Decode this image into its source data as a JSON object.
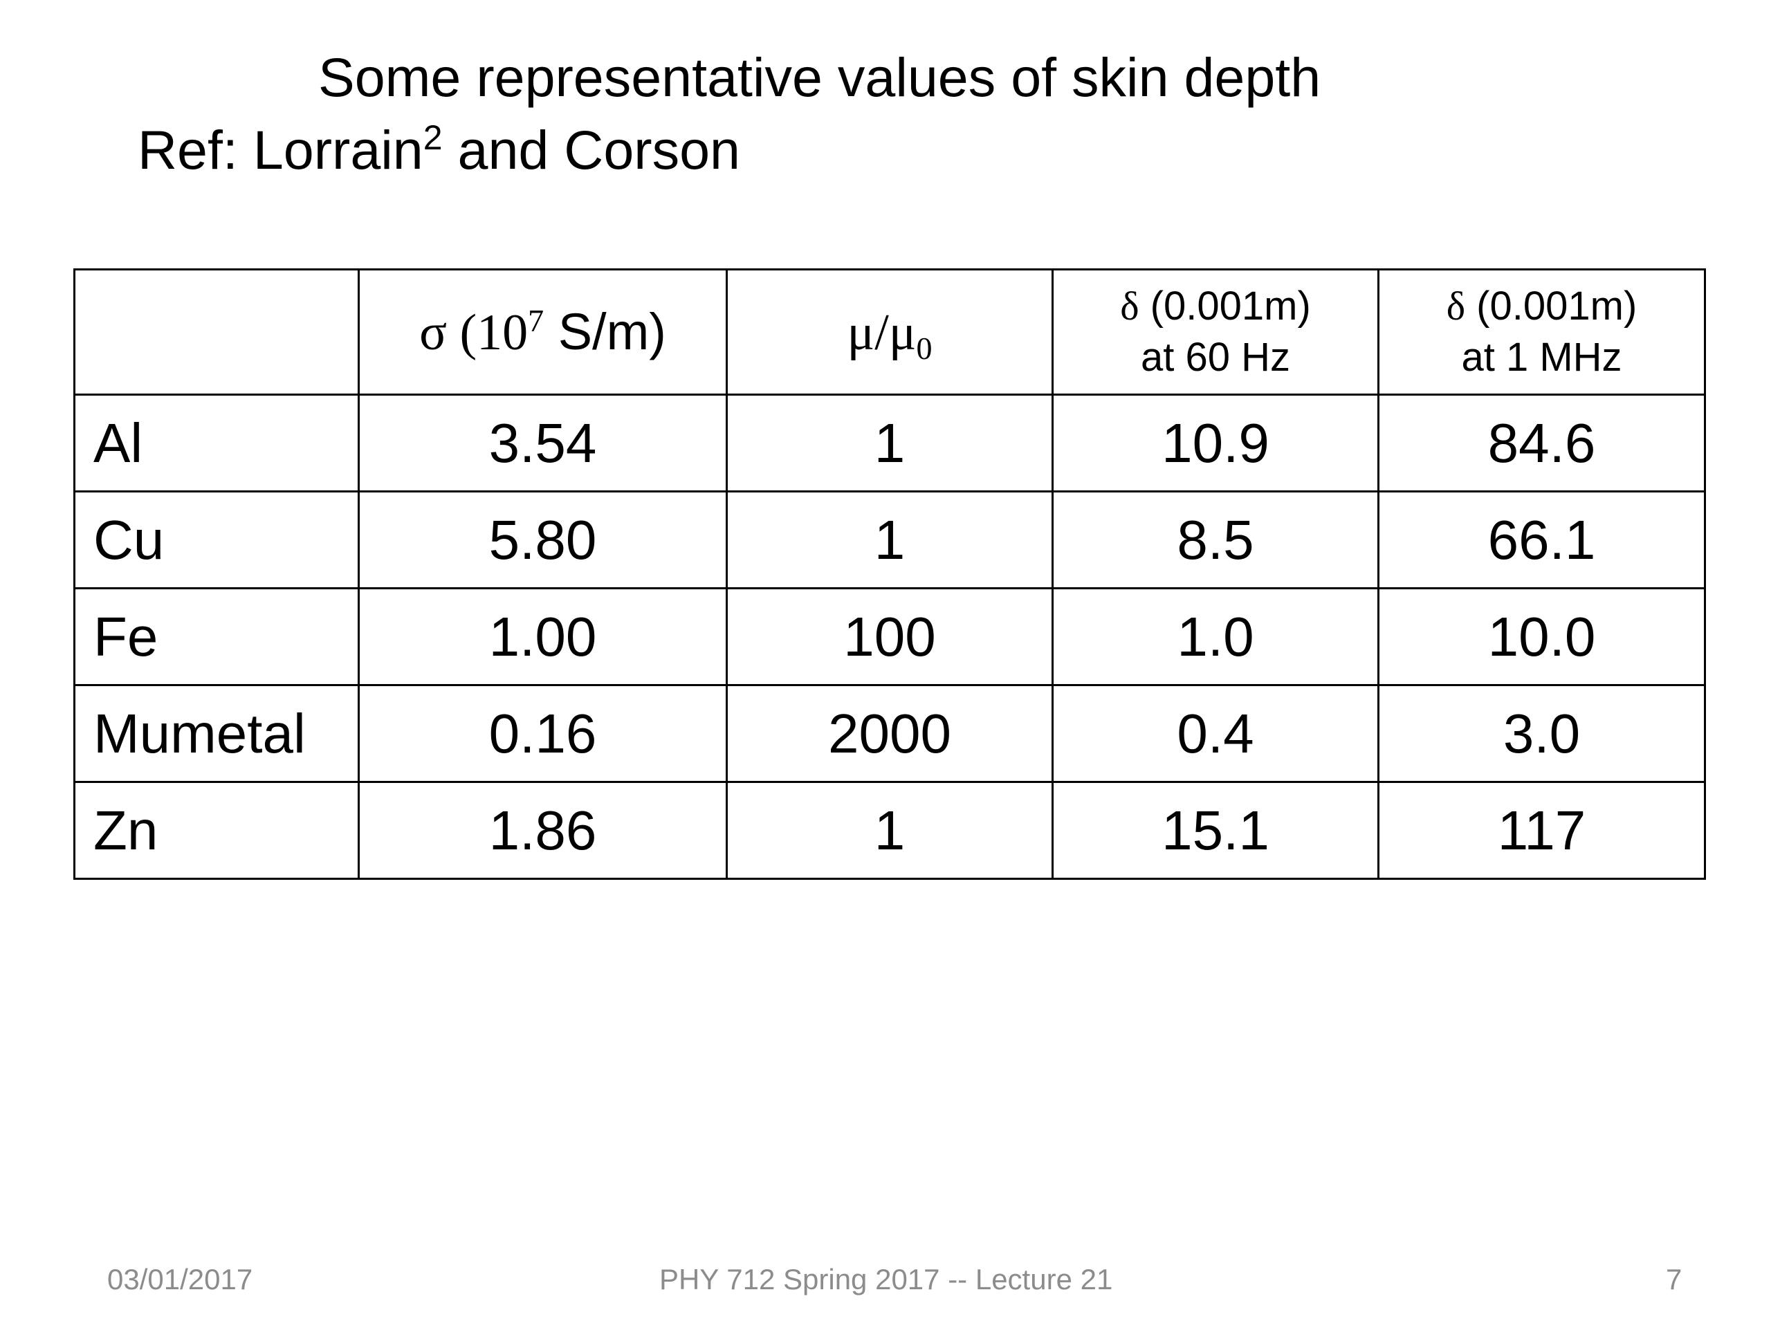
{
  "slide": {
    "title_line1": "Some representative values of skin depth",
    "title_line2_prefix": "Ref: Lorrain",
    "title_line2_sup": "2",
    "title_line2_suffix": " and Corson"
  },
  "table": {
    "headers": {
      "col0": "",
      "col1": {
        "symbol": "σ (10",
        "sup": "7",
        "unit": " S/m)"
      },
      "col2": {
        "symbol": "μ/μ",
        "sub": "0"
      },
      "col3": {
        "symbol": "δ",
        "line1_rest": " (0.001m)",
        "line2": "at 60 Hz"
      },
      "col4": {
        "symbol": "δ",
        "line1_rest": " (0.001m)",
        "line2": "at 1 MHz"
      }
    },
    "rows": [
      {
        "material": "Al",
        "sigma": "3.54",
        "mu": "1",
        "delta_60hz": "10.9",
        "delta_1mhz": "84.6"
      },
      {
        "material": "Cu",
        "sigma": "5.80",
        "mu": "1",
        "delta_60hz": "8.5",
        "delta_1mhz": "66.1"
      },
      {
        "material": "Fe",
        "sigma": "1.00",
        "mu": "100",
        "delta_60hz": "1.0",
        "delta_1mhz": "10.0"
      },
      {
        "material": "Mumetal",
        "sigma": "0.16",
        "mu": "2000",
        "delta_60hz": "0.4",
        "delta_1mhz": "3.0"
      },
      {
        "material": "Zn",
        "sigma": "1.86",
        "mu": "1",
        "delta_60hz": "15.1",
        "delta_1mhz": "117"
      }
    ]
  },
  "footer": {
    "date": "03/01/2017",
    "course": "PHY 712  Spring 2017 -- Lecture 21",
    "page": "7"
  },
  "colors": {
    "text": "#000000",
    "footer_text": "#8c8c8c",
    "background": "#ffffff"
  }
}
